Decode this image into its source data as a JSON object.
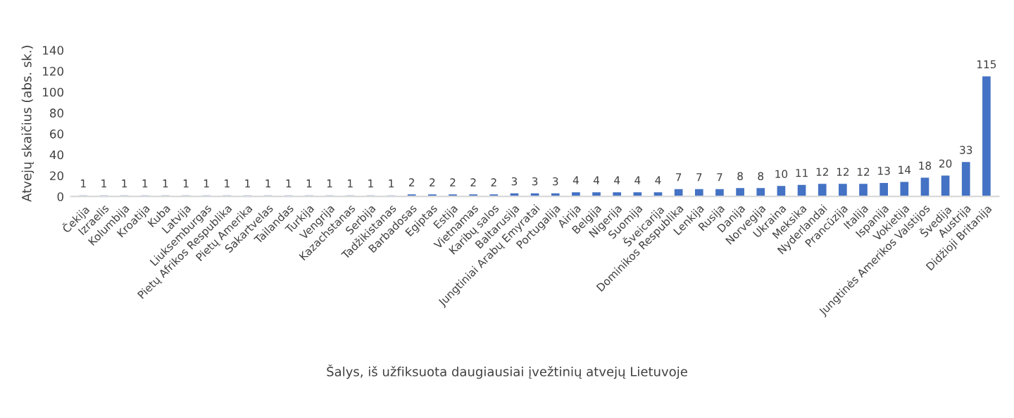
{
  "chart_data": {
    "type": "bar",
    "xlabel": "Šalys, iš užfiksuota daugiausiai įvežtinių atvejų Lietuvoje",
    "ylabel": "Atvejų skaičius (abs. sk.)",
    "categories": [
      "Čekija",
      "Izraelis",
      "Kolumbija",
      "Kroatija",
      "Kuba",
      "Latvija",
      "Liuksemburgas",
      "Pietų Afrikos Respublika",
      "Pietų Amerika",
      "Sakartvelas",
      "Tailandas",
      "Turkija",
      "Vengrija",
      "Kazachstanas",
      "Serbija",
      "Tadžikistanas",
      "Barbadosas",
      "Egiptas",
      "Estija",
      "Vietnamas",
      "Karibų salos",
      "Baltarusija",
      "Jungtiniai Arabų Emyratai",
      "Portugalija",
      "Airija",
      "Belgija",
      "Nigerija",
      "Suomija",
      "Šveicarija",
      "Dominikos Respublika",
      "Lenkija",
      "Rusija",
      "Danija",
      "Norvegija",
      "Ukraina",
      "Meksika",
      "Nyderlandai",
      "Prancūzija",
      "Italija",
      "Ispanija",
      "Vokietija",
      "Jungtinės Amerikos Valstijos",
      "Švedija",
      "Austrija",
      "Didžioji Britanija"
    ],
    "values": [
      1,
      1,
      1,
      1,
      1,
      1,
      1,
      1,
      1,
      1,
      1,
      1,
      1,
      1,
      1,
      1,
      2,
      2,
      2,
      2,
      2,
      3,
      3,
      3,
      4,
      4,
      4,
      4,
      4,
      7,
      7,
      7,
      8,
      8,
      10,
      11,
      12,
      12,
      12,
      13,
      14,
      18,
      20,
      33,
      115
    ],
    "color": "#4472c4",
    "ylim": [
      0,
      140
    ],
    "yticks": [
      0,
      20,
      40,
      60,
      80,
      100,
      120,
      140
    ],
    "data_labels": true,
    "grid": false
  }
}
